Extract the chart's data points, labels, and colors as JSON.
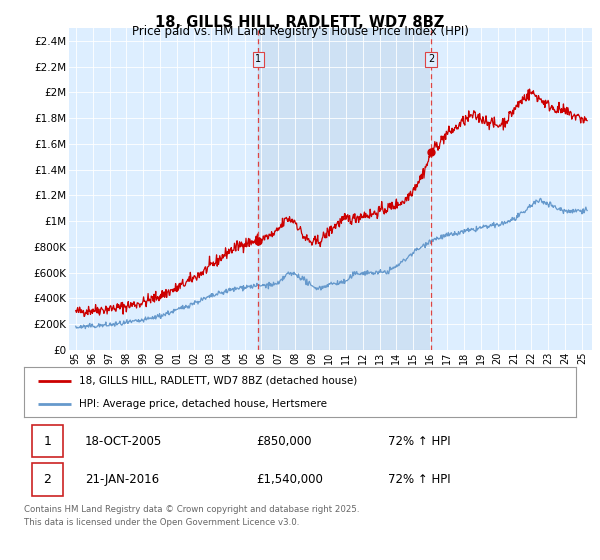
{
  "title_line1": "18, GILLS HILL, RADLETT, WD7 8BZ",
  "title_line2": "Price paid vs. HM Land Registry's House Price Index (HPI)",
  "ytick_values": [
    0,
    200000,
    400000,
    600000,
    800000,
    1000000,
    1200000,
    1400000,
    1600000,
    1800000,
    2000000,
    2200000,
    2400000
  ],
  "ylim": [
    0,
    2500000
  ],
  "xlim_start": 1994.6,
  "xlim_end": 2025.6,
  "red_line_label": "18, GILLS HILL, RADLETT, WD7 8BZ (detached house)",
  "blue_line_label": "HPI: Average price, detached house, Hertsmere",
  "transaction1_date": "18-OCT-2005",
  "transaction1_price": "£850,000",
  "transaction1_hpi": "72% ↑ HPI",
  "transaction1_x": 2005.8,
  "transaction1_y": 850000,
  "transaction2_date": "21-JAN-2016",
  "transaction2_price": "£1,540,000",
  "transaction2_hpi": "72% ↑ HPI",
  "transaction2_x": 2016.05,
  "transaction2_y": 1540000,
  "vline1_x": 2005.8,
  "vline2_x": 2016.05,
  "red_color": "#cc0000",
  "blue_color": "#6699cc",
  "vline_color": "#dd4444",
  "shade_color": "#ddeeff",
  "background_chart": "#ddeeff",
  "grid_color": "#ffffff",
  "footer_text": "Contains HM Land Registry data © Crown copyright and database right 2025.\nThis data is licensed under the Open Government Licence v3.0.",
  "xtick_years": [
    1995,
    1996,
    1997,
    1998,
    1999,
    2000,
    2001,
    2002,
    2003,
    2004,
    2005,
    2006,
    2007,
    2008,
    2009,
    2010,
    2011,
    2012,
    2013,
    2014,
    2015,
    2016,
    2017,
    2018,
    2019,
    2020,
    2021,
    2022,
    2023,
    2024,
    2025
  ]
}
